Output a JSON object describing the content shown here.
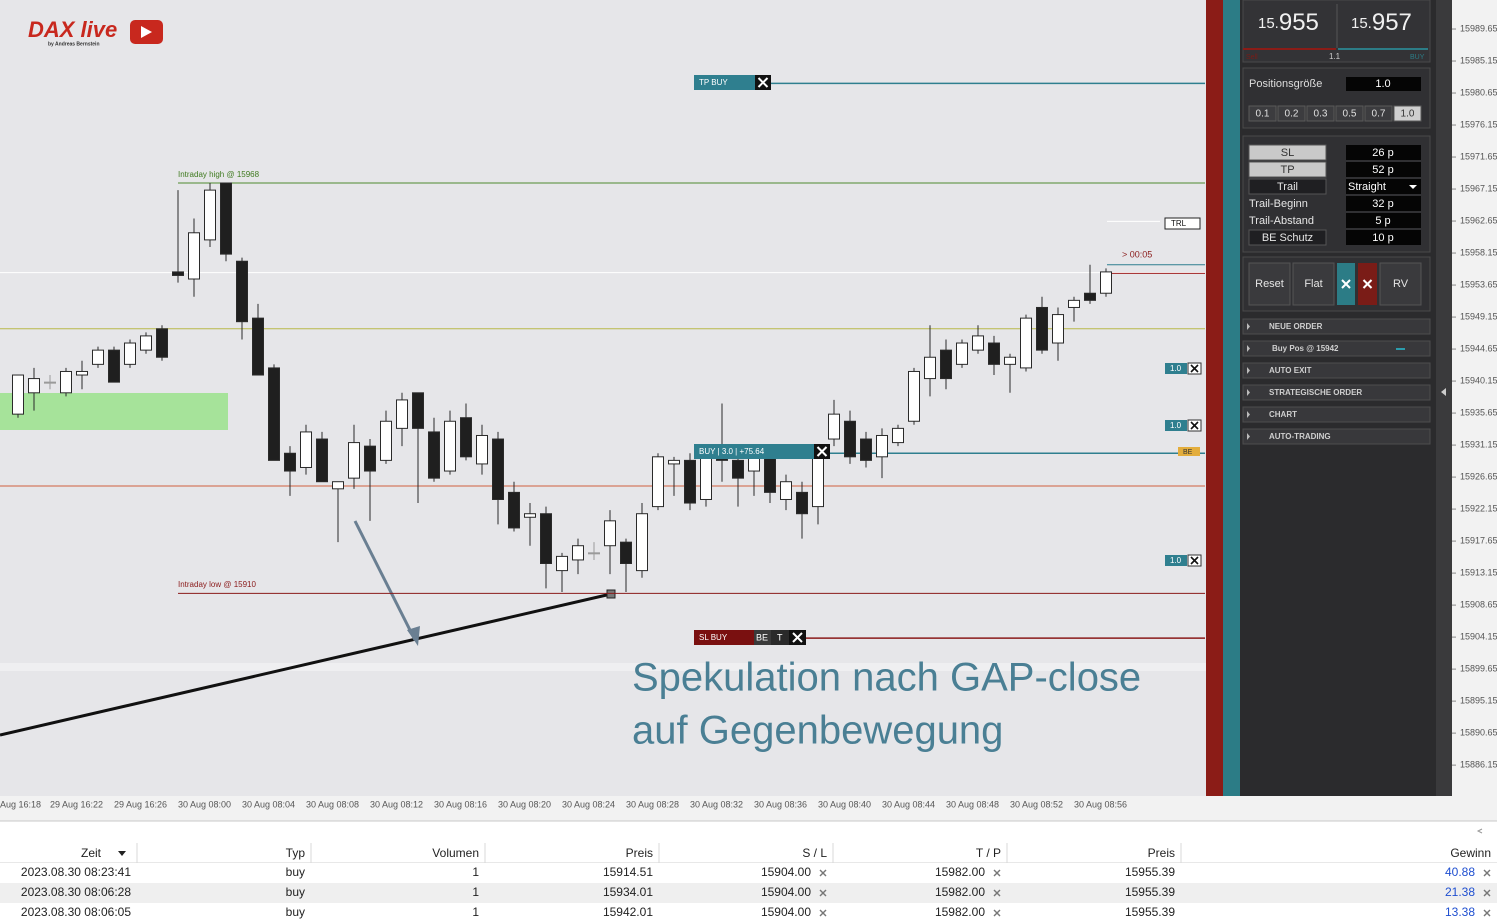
{
  "logo": {
    "title": "DAX live",
    "subtitle": "by Andreas Bernstein"
  },
  "chart_data": {
    "type": "candlestick",
    "up_color": "#ffffff",
    "down_color": "#1f1f1f",
    "ylim": [
      15881.95,
      15993.73
    ],
    "yticks": [
      {
        "value": 15989.65,
        "label": "15989.65"
      },
      {
        "value": 15985.15,
        "label": "15985.15"
      },
      {
        "value": 15980.65,
        "label": "15980.65"
      },
      {
        "value": 15976.15,
        "label": "15976.15"
      },
      {
        "value": 15971.65,
        "label": "15971.65"
      },
      {
        "value": 15967.15,
        "label": "15967.15"
      },
      {
        "value": 15962.65,
        "label": "15962.65"
      },
      {
        "value": 15958.15,
        "label": "15958.15"
      },
      {
        "value": 15953.65,
        "label": "15953.65"
      },
      {
        "value": 15949.15,
        "label": "15949.15"
      },
      {
        "value": 15944.65,
        "label": "15944.65"
      },
      {
        "value": 15940.15,
        "label": "15940.15"
      },
      {
        "value": 15935.65,
        "label": "15935.65"
      },
      {
        "value": 15931.15,
        "label": "15931.15"
      },
      {
        "value": 15926.65,
        "label": "15926.65"
      },
      {
        "value": 15922.15,
        "label": "15922.15"
      },
      {
        "value": 15917.65,
        "label": "15917.65"
      },
      {
        "value": 15913.15,
        "label": "15913.15"
      },
      {
        "value": 15908.65,
        "label": "15908.65"
      },
      {
        "value": 15904.15,
        "label": "15904.15"
      },
      {
        "value": 15899.65,
        "label": "15899.65"
      },
      {
        "value": 15895.15,
        "label": "15895.15"
      },
      {
        "value": 15890.65,
        "label": "15890.65"
      },
      {
        "value": 15886.15,
        "label": "15886.15"
      }
    ],
    "time_labels": [
      "Aug 16:18",
      "29 Aug 16:22",
      "29 Aug 16:26",
      "30 Aug 08:00",
      "30 Aug 08:04",
      "30 Aug 08:08",
      "30 Aug 08:12",
      "30 Aug 08:16",
      "30 Aug 08:20",
      "30 Aug 08:24",
      "30 Aug 08:28",
      "30 Aug 08:32",
      "30 Aug 08:36",
      "30 Aug 08:40",
      "30 Aug 08:44",
      "30 Aug 08:48",
      "30 Aug 08:52",
      "30 Aug 08:56"
    ],
    "ohlc": [
      [
        15935.5,
        15941,
        15935,
        15941
      ],
      [
        15938.5,
        15942,
        15936,
        15940.5
      ],
      [
        15940,
        15941,
        15939,
        15940
      ],
      [
        15938.5,
        15942,
        15938,
        15941.5
      ],
      [
        15941,
        15943,
        15939,
        15941.5
      ],
      [
        15942.5,
        15945,
        15942,
        15944.5
      ],
      [
        15944.5,
        15945,
        15940,
        15940
      ],
      [
        15942.5,
        15946,
        15942,
        15945.5
      ],
      [
        15944.5,
        15947,
        15944,
        15946.5
      ],
      [
        15947.5,
        15948,
        15943,
        15943.5
      ],
      [
        15955.5,
        15967,
        15954,
        15955
      ],
      [
        15954.5,
        15963,
        15952,
        15961
      ],
      [
        15960,
        15968,
        15959,
        15967
      ],
      [
        15968,
        15968,
        15957,
        15958
      ],
      [
        15957,
        15957.5,
        15946,
        15948.5
      ],
      [
        15949,
        15951,
        15941,
        15941
      ],
      [
        15942,
        15942.5,
        15929,
        15929
      ],
      [
        15930,
        15931,
        15924,
        15927.5
      ],
      [
        15928,
        15934,
        15927,
        15933
      ],
      [
        15932,
        15933,
        15926,
        15926
      ],
      [
        15925,
        15926,
        15917.5,
        15926
      ],
      [
        15926.5,
        15934,
        15925,
        15931.5
      ],
      [
        15931,
        15932,
        15920.5,
        15927.5
      ],
      [
        15929,
        15936,
        15928.5,
        15934.5
      ],
      [
        15933.5,
        15938.5,
        15931,
        15937.5
      ],
      [
        15938.5,
        15938.5,
        15923,
        15933.5
      ],
      [
        15933,
        15935,
        15926,
        15926.5
      ],
      [
        15927.5,
        15936,
        15927,
        15934.5
      ],
      [
        15935,
        15937,
        15929,
        15929.5
      ],
      [
        15928.5,
        15934,
        15927,
        15932.5
      ],
      [
        15932,
        15933,
        15920,
        15923.5
      ],
      [
        15924.5,
        15926,
        15919,
        15919.5
      ],
      [
        15921,
        15923,
        15917,
        15921.5
      ],
      [
        15921.5,
        15922.5,
        15911,
        15914.5
      ],
      [
        15913.5,
        15916,
        15910.5,
        15915.5
      ],
      [
        15915,
        15918,
        15913,
        15917
      ],
      [
        15916,
        15917.5,
        15915,
        15916
      ],
      [
        15917,
        15922,
        15913,
        15920.5
      ],
      [
        15917.5,
        15918,
        15910.5,
        15914.5
      ],
      [
        15913.5,
        15923,
        15912.5,
        15921.5
      ],
      [
        15922.5,
        15930,
        15922,
        15929.5
      ],
      [
        15928.5,
        15929.5,
        15924,
        15929
      ],
      [
        15929,
        15930,
        15922,
        15923
      ],
      [
        15923.5,
        15931,
        15922.5,
        15929.5
      ],
      [
        15929.5,
        15937,
        15926,
        15929
      ],
      [
        15929,
        15930,
        15922.5,
        15926.5
      ],
      [
        15927.5,
        15931,
        15924,
        15929.5
      ],
      [
        15929.5,
        15930,
        15923,
        15924.5
      ],
      [
        15923.5,
        15927,
        15922,
        15926
      ],
      [
        15924.5,
        15926,
        15918,
        15921.5
      ],
      [
        15922.5,
        15931,
        15920,
        15930
      ],
      [
        15932,
        15937.5,
        15931,
        15935.5
      ],
      [
        15934.5,
        15936,
        15928.5,
        15929.5
      ],
      [
        15932,
        15933,
        15928,
        15929
      ],
      [
        15929.5,
        15933.5,
        15926.5,
        15932.5
      ],
      [
        15931.5,
        15934,
        15931,
        15933.5
      ],
      [
        15934.5,
        15942,
        15934,
        15941.5
      ],
      [
        15940.5,
        15948,
        15938,
        15943.5
      ],
      [
        15944.5,
        15946,
        15939,
        15940.5
      ],
      [
        15942.5,
        15946,
        15942,
        15945.5
      ],
      [
        15944.5,
        15948,
        15944,
        15946.5
      ],
      [
        15945.5,
        15946.5,
        15941,
        15942.5
      ],
      [
        15942.5,
        15944,
        15938.5,
        15943.5
      ],
      [
        15942,
        15949.5,
        15941.5,
        15949
      ],
      [
        15950.5,
        15952,
        15944,
        15944.5
      ],
      [
        15945.5,
        15950.5,
        15943,
        15949.5
      ],
      [
        15950.5,
        15952,
        15948.5,
        15951.5
      ],
      [
        15952.5,
        15956.5,
        15951,
        15951.5
      ],
      [
        15952.5,
        15956,
        15952,
        15955.5
      ]
    ],
    "levels": [
      {
        "price": 15982,
        "color": "#2f7f8f"
      },
      {
        "price": 15968,
        "color": "#4f8a2f"
      },
      {
        "price": 15955.4,
        "color": "#ffffff"
      },
      {
        "price": 15947.5,
        "color": "#b8b84a"
      },
      {
        "price": 15930,
        "color": "#2f7f8f"
      },
      {
        "price": 15925.4,
        "color": "#d0603f"
      },
      {
        "price": 15910.3,
        "color": "#8a1a1a"
      },
      {
        "price": 15904,
        "color": "#8a1a1a"
      },
      {
        "price": 15956.5,
        "color": "#2f7f8f"
      },
      {
        "price": 15955.3,
        "color": "#a02020"
      },
      {
        "price": 15962.6,
        "color": "#ffffff"
      }
    ]
  },
  "annotations": {
    "intraday_high": "Intraday high @ 15968",
    "intraday_low": "Intraday low @ 15910",
    "tp_buy": "TP BUY",
    "buy_label": "BUY | 3.0 | +75.64",
    "sl_buy": "SL BUY",
    "sl_be": "BE",
    "sl_t": "T",
    "trl": "TRL",
    "timer": "> 00:05",
    "qty_tags": [
      "1.0",
      "1.0",
      "1.0"
    ],
    "be_tag": "BE",
    "note": [
      "Spekulation nach GAP-close",
      "auf Gegenbewegung"
    ]
  },
  "panel": {
    "bid": {
      "prefix": "15.",
      "main": "955"
    },
    "ask": {
      "prefix": "15.",
      "main": "957"
    },
    "sell": "Sell",
    "spread": "1.1",
    "buy": "BUY",
    "position_label": "Positionsgröße",
    "position_value": "1.0",
    "sizes": [
      "0.1",
      "0.2",
      "0.3",
      "0.5",
      "0.7",
      "1.0"
    ],
    "settings": [
      {
        "label": "SL",
        "value": "26 p"
      },
      {
        "label": "TP",
        "value": "52 p"
      },
      {
        "label": "Trail",
        "value": "Straight"
      },
      {
        "label": "Trail-Beginn",
        "value": "32 p"
      },
      {
        "label": "Trail-Abstand",
        "value": "5 p"
      },
      {
        "label": "BE Schutz",
        "value": "10 p"
      }
    ],
    "buttons": [
      "Reset",
      "Flat",
      "RV"
    ],
    "sections": [
      "NEUE ORDER",
      "Buy Pos @ 15942",
      "AUTO EXIT",
      "STRATEGISCHE ORDER",
      "CHART",
      "AUTO-TRADING"
    ]
  },
  "table": {
    "headers": [
      "Zeit",
      "Typ",
      "Volumen",
      "Preis",
      "S / L",
      "T / P",
      "Preis",
      "Gewinn"
    ],
    "rows": [
      [
        "2023.08.30 08:23:41",
        "buy",
        "1",
        "15914.51",
        "15904.00",
        "15982.00",
        "15955.39",
        "40.88"
      ],
      [
        "2023.08.30 08:06:28",
        "buy",
        "1",
        "15934.01",
        "15904.00",
        "15982.00",
        "15955.39",
        "21.38"
      ],
      [
        "2023.08.30 08:06:05",
        "buy",
        "1",
        "15942.01",
        "15904.00",
        "15982.00",
        "15955.39",
        "13.38"
      ]
    ]
  }
}
